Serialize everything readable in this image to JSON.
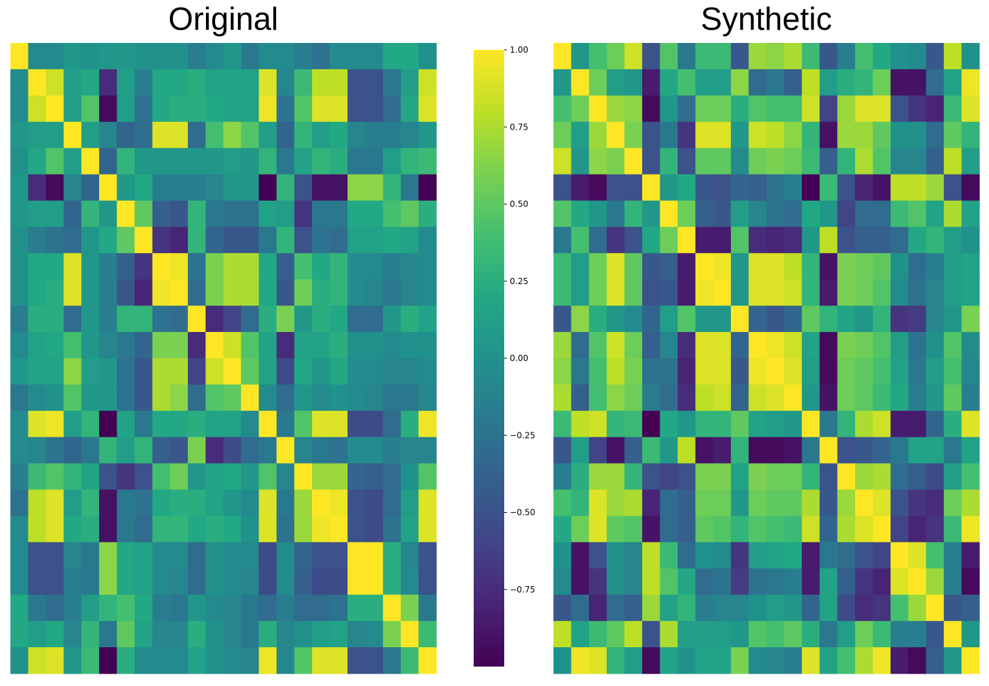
{
  "chart_data": [
    {
      "type": "heatmap",
      "title": "Original",
      "n": 24,
      "matrix": [
        [
          1.0,
          -0.05,
          -0.05,
          0.05,
          0.0,
          0.05,
          0.05,
          0.0,
          0.0,
          0.0,
          -0.15,
          -0.05,
          0.05,
          -0.2,
          -0.05,
          -0.05,
          -0.15,
          -0.25,
          -0.05,
          -0.05,
          -0.05,
          0.2,
          0.2,
          0.0
        ],
        [
          -0.05,
          1.0,
          0.85,
          0.1,
          0.2,
          -0.75,
          0.1,
          -0.15,
          0.2,
          0.2,
          0.25,
          0.15,
          0.15,
          0.15,
          0.9,
          -0.1,
          0.35,
          0.8,
          0.8,
          -0.5,
          -0.5,
          -0.2,
          0.1,
          0.85
        ],
        [
          -0.05,
          0.85,
          1.0,
          0.1,
          0.45,
          -0.95,
          0.1,
          -0.25,
          0.2,
          0.25,
          0.25,
          0.2,
          0.15,
          0.15,
          0.95,
          -0.25,
          0.45,
          0.9,
          0.9,
          -0.5,
          -0.5,
          -0.3,
          0.2,
          0.9
        ],
        [
          0.05,
          0.1,
          0.1,
          1.0,
          0.1,
          -0.1,
          -0.35,
          -0.3,
          0.9,
          0.9,
          -0.3,
          0.4,
          0.65,
          0.45,
          0.1,
          -0.35,
          0.3,
          0.1,
          0.2,
          -0.1,
          -0.15,
          -0.15,
          -0.1,
          0.05
        ],
        [
          0.0,
          0.2,
          0.45,
          0.1,
          1.0,
          -0.35,
          0.3,
          0.05,
          0.05,
          0.05,
          0.05,
          0.05,
          0.1,
          0.05,
          0.3,
          -0.2,
          0.15,
          0.3,
          0.25,
          -0.2,
          -0.2,
          0.1,
          0.3,
          0.35
        ],
        [
          0.05,
          -0.75,
          -0.95,
          -0.1,
          -0.35,
          1.0,
          0.05,
          0.2,
          -0.15,
          -0.15,
          -0.15,
          -0.1,
          0.05,
          0.05,
          -1.0,
          0.3,
          -0.5,
          -0.9,
          -0.9,
          0.65,
          0.65,
          0.3,
          -0.2,
          -1.0
        ],
        [
          0.05,
          0.1,
          0.1,
          -0.35,
          0.3,
          0.05,
          1.0,
          0.5,
          -0.4,
          -0.45,
          0.3,
          -0.2,
          -0.25,
          -0.25,
          0.15,
          0.1,
          -0.7,
          -0.2,
          -0.2,
          0.2,
          0.2,
          0.4,
          0.5,
          0.25
        ],
        [
          0.0,
          -0.15,
          -0.25,
          -0.3,
          0.05,
          0.2,
          0.5,
          1.0,
          -0.7,
          -0.8,
          0.3,
          -0.35,
          -0.45,
          -0.45,
          -0.2,
          0.3,
          -0.5,
          -0.25,
          -0.3,
          0.15,
          0.15,
          0.2,
          0.15,
          -0.05
        ],
        [
          0.0,
          0.2,
          0.2,
          0.9,
          0.05,
          -0.15,
          -0.4,
          -0.7,
          1.0,
          0.95,
          -0.25,
          0.6,
          0.75,
          0.75,
          0.2,
          -0.4,
          0.4,
          0.2,
          0.3,
          -0.05,
          -0.05,
          -0.15,
          -0.1,
          -0.05
        ],
        [
          0.0,
          0.2,
          0.25,
          0.9,
          0.05,
          -0.15,
          -0.45,
          -0.8,
          0.95,
          1.0,
          -0.3,
          0.6,
          0.75,
          0.75,
          0.2,
          -0.45,
          0.55,
          0.25,
          0.3,
          -0.05,
          -0.1,
          -0.2,
          -0.1,
          -0.05
        ],
        [
          -0.15,
          0.25,
          0.25,
          -0.3,
          0.05,
          -0.15,
          0.3,
          0.3,
          -0.25,
          -0.3,
          1.0,
          -0.75,
          -0.6,
          -0.3,
          0.25,
          0.6,
          0.05,
          0.25,
          0.2,
          -0.3,
          -0.3,
          0.05,
          0.25,
          0.15
        ],
        [
          -0.05,
          0.15,
          0.2,
          0.4,
          0.05,
          -0.1,
          -0.2,
          -0.35,
          0.6,
          0.6,
          -0.75,
          1.0,
          0.85,
          0.45,
          0.15,
          -0.75,
          0.15,
          0.15,
          0.25,
          0.0,
          0.0,
          -0.05,
          0.0,
          0.0
        ],
        [
          0.05,
          0.15,
          0.15,
          0.65,
          0.1,
          0.05,
          -0.25,
          -0.45,
          0.75,
          0.75,
          -0.6,
          0.85,
          1.0,
          0.5,
          0.15,
          -0.55,
          0.2,
          0.05,
          0.2,
          -0.05,
          -0.05,
          -0.1,
          -0.1,
          -0.05
        ],
        [
          -0.2,
          -0.05,
          0.0,
          0.45,
          0.05,
          0.05,
          -0.25,
          -0.45,
          0.75,
          0.65,
          -0.3,
          0.45,
          0.5,
          1.0,
          -0.05,
          -0.3,
          0.05,
          -0.05,
          0.0,
          -0.05,
          -0.1,
          -0.2,
          -0.2,
          -0.1
        ],
        [
          -0.05,
          0.9,
          0.95,
          0.1,
          0.3,
          -1.0,
          0.15,
          -0.2,
          0.2,
          0.2,
          0.25,
          0.15,
          0.15,
          -0.05,
          1.0,
          -0.2,
          0.45,
          0.9,
          0.9,
          -0.55,
          -0.55,
          -0.3,
          0.25,
          0.95
        ],
        [
          -0.05,
          -0.1,
          -0.25,
          -0.35,
          -0.2,
          0.3,
          0.1,
          0.3,
          -0.4,
          -0.45,
          0.6,
          -0.75,
          -0.55,
          -0.3,
          -0.2,
          1.0,
          -0.1,
          -0.2,
          -0.25,
          -0.05,
          -0.05,
          -0.15,
          -0.1,
          -0.1
        ],
        [
          -0.15,
          0.35,
          0.45,
          0.3,
          0.15,
          -0.5,
          -0.7,
          -0.5,
          0.4,
          0.55,
          0.05,
          0.15,
          0.2,
          0.05,
          0.45,
          -0.1,
          1.0,
          0.7,
          0.7,
          -0.35,
          -0.4,
          -0.3,
          0.0,
          0.45
        ],
        [
          -0.25,
          0.8,
          0.9,
          0.1,
          0.3,
          -0.9,
          -0.2,
          -0.25,
          0.2,
          0.25,
          0.25,
          0.15,
          0.05,
          -0.05,
          0.9,
          -0.2,
          0.7,
          1.0,
          0.95,
          -0.5,
          -0.55,
          -0.3,
          0.1,
          0.9
        ],
        [
          -0.05,
          0.8,
          0.9,
          0.2,
          0.25,
          -0.9,
          -0.2,
          -0.3,
          0.3,
          0.3,
          0.2,
          0.25,
          0.2,
          0.0,
          0.9,
          -0.25,
          0.7,
          0.95,
          1.0,
          -0.5,
          -0.55,
          -0.25,
          0.15,
          0.9
        ],
        [
          -0.05,
          -0.5,
          -0.5,
          -0.1,
          -0.2,
          0.65,
          0.2,
          0.15,
          -0.05,
          -0.05,
          -0.3,
          0.0,
          -0.05,
          -0.05,
          -0.55,
          -0.05,
          -0.35,
          -0.5,
          -0.5,
          1.0,
          1.0,
          0.25,
          -0.1,
          -0.5
        ],
        [
          -0.05,
          -0.5,
          -0.5,
          -0.15,
          -0.2,
          0.65,
          0.2,
          0.15,
          -0.05,
          -0.1,
          -0.3,
          0.0,
          -0.05,
          -0.1,
          -0.55,
          -0.05,
          -0.4,
          -0.55,
          -0.55,
          1.0,
          1.0,
          0.25,
          -0.05,
          -0.5
        ],
        [
          0.2,
          -0.2,
          -0.3,
          -0.15,
          0.1,
          0.3,
          0.4,
          0.2,
          -0.15,
          -0.2,
          0.05,
          -0.05,
          -0.1,
          -0.2,
          -0.3,
          -0.15,
          -0.3,
          -0.3,
          -0.25,
          0.25,
          0.25,
          1.0,
          0.6,
          -0.2
        ],
        [
          0.2,
          0.1,
          0.2,
          -0.1,
          0.3,
          -0.2,
          0.5,
          0.15,
          -0.1,
          -0.1,
          0.25,
          0.0,
          -0.1,
          -0.2,
          0.25,
          -0.1,
          0.0,
          0.1,
          0.15,
          -0.1,
          -0.05,
          0.6,
          1.0,
          0.35
        ],
        [
          0.0,
          0.85,
          0.9,
          0.05,
          0.35,
          -1.0,
          0.25,
          -0.05,
          -0.05,
          -0.05,
          0.15,
          0.0,
          -0.05,
          -0.1,
          0.95,
          -0.1,
          0.45,
          0.9,
          0.9,
          -0.5,
          -0.5,
          -0.2,
          0.35,
          1.0
        ]
      ]
    },
    {
      "type": "heatmap",
      "title": "Synthetic",
      "n": 24,
      "matrix": [
        [
          1.0,
          0.05,
          0.4,
          0.55,
          0.85,
          -0.5,
          0.45,
          -0.2,
          0.35,
          0.35,
          -0.45,
          0.7,
          0.65,
          0.75,
          0.35,
          -0.45,
          -0.15,
          0.4,
          0.2,
          0.0,
          -0.05,
          -0.45,
          0.8,
          0.0
        ],
        [
          0.05,
          1.0,
          0.55,
          0.1,
          0.05,
          -0.85,
          0.2,
          0.4,
          0.1,
          0.1,
          0.65,
          -0.3,
          -0.2,
          -0.4,
          0.8,
          0.1,
          0.25,
          0.3,
          0.55,
          -0.9,
          -0.9,
          -0.3,
          0.15,
          0.95
        ],
        [
          0.4,
          0.55,
          1.0,
          0.7,
          0.65,
          -0.95,
          0.05,
          -0.3,
          0.55,
          0.55,
          0.25,
          0.45,
          0.4,
          0.4,
          0.85,
          -0.6,
          0.7,
          0.9,
          0.9,
          -0.5,
          -0.7,
          -0.8,
          0.35,
          0.9
        ],
        [
          0.55,
          0.1,
          0.7,
          1.0,
          0.6,
          -0.5,
          -0.2,
          -0.7,
          0.9,
          0.9,
          0.05,
          0.85,
          0.8,
          0.65,
          0.3,
          -0.9,
          0.7,
          0.7,
          0.5,
          0.0,
          0.0,
          -0.3,
          0.5,
          0.3
        ],
        [
          0.85,
          0.05,
          0.65,
          0.6,
          1.0,
          -0.5,
          0.3,
          -0.5,
          0.5,
          0.5,
          -0.05,
          0.55,
          0.6,
          0.55,
          0.35,
          -0.4,
          0.3,
          0.75,
          0.45,
          -0.1,
          -0.1,
          -0.4,
          0.8,
          0.1
        ],
        [
          -0.5,
          -0.85,
          -0.95,
          -0.5,
          -0.5,
          1.0,
          0.05,
          0.2,
          -0.45,
          -0.5,
          -0.35,
          -0.4,
          -0.25,
          -0.15,
          -1.0,
          0.35,
          -0.5,
          -0.8,
          -0.9,
          0.8,
          0.8,
          0.7,
          -0.5,
          -0.95
        ],
        [
          0.45,
          0.2,
          0.05,
          -0.2,
          0.3,
          0.05,
          1.0,
          0.55,
          -0.4,
          -0.45,
          0.1,
          -0.1,
          -0.25,
          -0.3,
          0.2,
          0.05,
          -0.6,
          -0.3,
          -0.3,
          0.35,
          0.45,
          0.15,
          0.75,
          0.15
        ],
        [
          -0.2,
          0.4,
          -0.3,
          -0.7,
          -0.5,
          0.2,
          0.55,
          1.0,
          -0.85,
          -0.85,
          0.45,
          -0.75,
          -0.8,
          -0.75,
          0.05,
          0.8,
          -0.5,
          -0.4,
          -0.4,
          -0.3,
          0.2,
          0.3,
          0.1,
          0.0
        ],
        [
          0.35,
          0.1,
          0.55,
          0.9,
          0.5,
          -0.45,
          -0.4,
          -0.85,
          1.0,
          0.95,
          0.05,
          0.9,
          0.9,
          0.8,
          0.3,
          -0.9,
          0.6,
          0.55,
          0.5,
          0.0,
          -0.3,
          -0.15,
          0.1,
          0.15
        ],
        [
          0.35,
          0.1,
          0.55,
          0.9,
          0.5,
          -0.5,
          -0.45,
          -0.85,
          0.95,
          1.0,
          0.05,
          0.9,
          0.9,
          0.85,
          0.3,
          -0.85,
          0.6,
          0.55,
          0.45,
          -0.05,
          -0.25,
          -0.1,
          0.1,
          0.15
        ],
        [
          -0.45,
          0.65,
          0.25,
          0.05,
          -0.05,
          -0.35,
          0.1,
          0.45,
          0.05,
          0.05,
          1.0,
          -0.35,
          -0.45,
          -0.35,
          0.5,
          0.3,
          0.15,
          0.05,
          0.3,
          -0.7,
          -0.65,
          -0.1,
          0.05,
          0.6
        ],
        [
          0.7,
          -0.3,
          0.45,
          0.85,
          0.55,
          -0.4,
          -0.1,
          -0.75,
          0.9,
          0.9,
          -0.35,
          1.0,
          0.95,
          0.85,
          0.15,
          -0.95,
          0.6,
          0.55,
          0.45,
          0.1,
          -0.25,
          0.0,
          0.45,
          -0.05
        ],
        [
          0.65,
          -0.2,
          0.4,
          0.8,
          0.6,
          -0.25,
          -0.25,
          -0.8,
          0.9,
          0.9,
          -0.45,
          0.95,
          1.0,
          0.9,
          0.1,
          -0.95,
          0.55,
          0.5,
          0.4,
          0.15,
          -0.2,
          0.1,
          0.4,
          -0.1
        ],
        [
          0.75,
          -0.4,
          0.4,
          0.65,
          0.55,
          -0.15,
          -0.3,
          -0.75,
          0.8,
          0.85,
          -0.35,
          0.85,
          0.9,
          1.0,
          0.05,
          -0.9,
          0.55,
          0.5,
          0.35,
          0.2,
          -0.15,
          0.05,
          0.5,
          -0.15
        ],
        [
          0.35,
          0.8,
          0.85,
          0.3,
          0.35,
          -1.0,
          0.2,
          0.05,
          0.3,
          0.3,
          0.5,
          0.15,
          0.1,
          0.05,
          1.0,
          -0.2,
          0.3,
          0.75,
          0.85,
          -0.85,
          -0.85,
          -0.35,
          0.25,
          0.9
        ],
        [
          -0.45,
          0.1,
          -0.6,
          -0.9,
          -0.4,
          0.35,
          0.05,
          0.8,
          -0.9,
          -0.85,
          0.3,
          -0.95,
          -0.95,
          -0.9,
          -0.2,
          1.0,
          -0.5,
          -0.45,
          -0.35,
          -0.2,
          0.15,
          0.15,
          -0.2,
          0.15
        ],
        [
          -0.15,
          0.25,
          0.7,
          0.7,
          0.3,
          -0.5,
          -0.6,
          -0.5,
          0.6,
          0.6,
          0.15,
          0.6,
          0.55,
          0.55,
          0.3,
          -0.5,
          1.0,
          0.7,
          0.75,
          -0.3,
          -0.4,
          -0.55,
          0.1,
          0.4
        ],
        [
          0.4,
          0.3,
          0.9,
          0.7,
          0.75,
          -0.8,
          -0.3,
          -0.4,
          0.55,
          0.55,
          0.05,
          0.55,
          0.5,
          0.5,
          0.75,
          -0.45,
          0.7,
          1.0,
          0.9,
          -0.5,
          -0.7,
          -0.75,
          0.55,
          0.75
        ],
        [
          0.2,
          0.55,
          0.9,
          0.5,
          0.45,
          -0.9,
          -0.3,
          -0.4,
          0.5,
          0.45,
          0.3,
          0.45,
          0.4,
          0.35,
          0.85,
          -0.35,
          0.75,
          0.9,
          1.0,
          -0.6,
          -0.8,
          -0.7,
          0.35,
          0.95
        ],
        [
          0.0,
          -0.9,
          -0.5,
          0.0,
          -0.1,
          0.8,
          0.35,
          -0.3,
          0.0,
          -0.05,
          -0.7,
          0.1,
          0.15,
          0.2,
          -0.85,
          -0.2,
          -0.3,
          -0.5,
          -0.6,
          1.0,
          0.9,
          0.4,
          -0.15,
          -0.85
        ],
        [
          -0.05,
          -0.9,
          -0.7,
          0.0,
          -0.1,
          0.8,
          0.45,
          0.2,
          -0.3,
          -0.25,
          -0.65,
          -0.25,
          -0.2,
          -0.15,
          -0.85,
          0.15,
          -0.4,
          -0.7,
          -0.8,
          0.9,
          1.0,
          0.7,
          -0.15,
          -0.95
        ],
        [
          -0.45,
          -0.3,
          -0.8,
          -0.3,
          -0.4,
          0.7,
          0.15,
          0.3,
          -0.15,
          -0.1,
          -0.1,
          0.0,
          0.1,
          0.05,
          -0.35,
          0.15,
          -0.55,
          -0.75,
          -0.7,
          0.4,
          0.7,
          1.0,
          -0.45,
          -0.4
        ],
        [
          0.8,
          0.15,
          0.35,
          0.5,
          0.8,
          -0.5,
          0.75,
          0.1,
          0.1,
          0.1,
          0.05,
          0.45,
          0.4,
          0.5,
          0.25,
          -0.2,
          0.1,
          0.55,
          0.35,
          -0.15,
          -0.15,
          -0.45,
          1.0,
          0.05
        ],
        [
          0.0,
          0.95,
          0.9,
          0.3,
          0.1,
          -0.95,
          0.15,
          0.0,
          0.15,
          0.15,
          0.6,
          -0.05,
          -0.1,
          -0.15,
          0.9,
          0.15,
          0.4,
          0.75,
          0.95,
          -0.85,
          -0.95,
          -0.4,
          0.05,
          1.0
        ]
      ]
    }
  ],
  "colorbar": {
    "min": -1.0,
    "max": 1.0,
    "ticks": [
      1.0,
      0.75,
      0.5,
      0.25,
      0.0,
      -0.25,
      -0.5,
      -0.75
    ],
    "tick_labels": [
      "1.00",
      "0.75",
      "0.50",
      "0.25",
      "0.00",
      "−0.25",
      "−0.50",
      "−0.75"
    ]
  }
}
